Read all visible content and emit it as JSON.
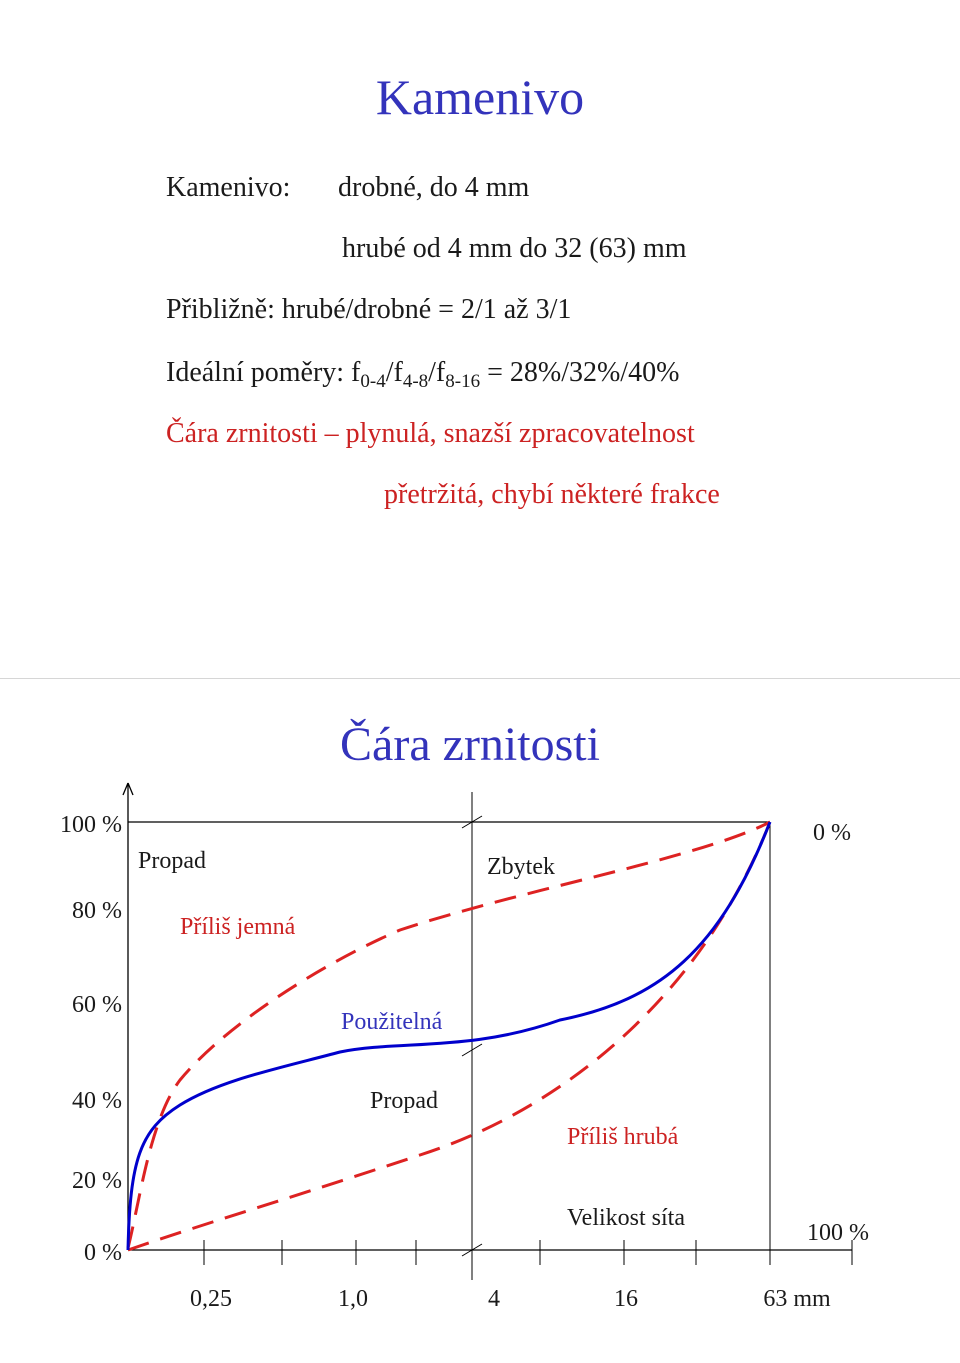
{
  "slide1": {
    "title": "Kamenivo",
    "kamenivo_label": "Kamenivo:",
    "kamenivo_fine": "drobné, do 4 mm",
    "kamenivo_coarse": "hrubé od 4 mm do 32 (63) mm",
    "ratio_line": "Přibližně: hrubé/drobné = 2/1 až 3/1",
    "ideal_prefix": "Ideální poměry: f",
    "ideal_sub1": "0-4",
    "ideal_sep1": "/f",
    "ideal_sub2": "4-8",
    "ideal_sep2": "/f",
    "ideal_sub3": "8-16",
    "ideal_value": " = 28%/32%/40%",
    "curve_line1": "Čára zrnitosti – plynulá, snazší zpracovatelnost",
    "curve_line2": "přetržitá, chybí některé frakce"
  },
  "slide2": {
    "title": "Čára zrnitosti",
    "y_labels": [
      "100 %",
      "80 %",
      "60 %",
      "40 %",
      "20 %",
      "0 %"
    ],
    "x_labels": [
      "0,25",
      "1,0",
      "4",
      "16",
      "63 mm"
    ],
    "right_top": "0 %",
    "right_bottom": "100 %",
    "propad_top": "Propad",
    "too_fine": "Příliš jemná",
    "zbytek": "Zbytek",
    "usable": "Použitelná",
    "propad_mid": "Propad",
    "too_coarse": "Příliš hrubá",
    "sieve_size": "Velikost síta",
    "colors": {
      "title": "#3333bb",
      "text": "#1a1a1a",
      "limit_curve": "#dd2222",
      "usable_curve": "#0000cc"
    }
  }
}
